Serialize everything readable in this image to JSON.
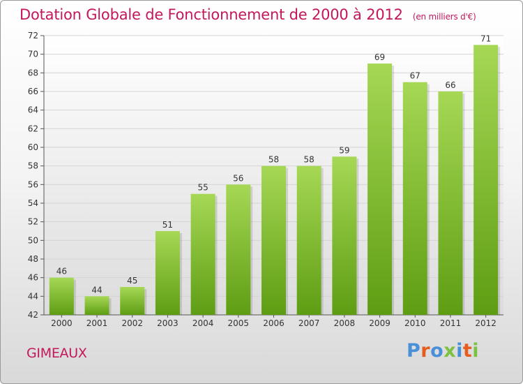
{
  "header": {
    "title": "Dotation Globale de Fonctionnement de 2000 à 2012",
    "unit": "(en milliers d'€)"
  },
  "footer": {
    "commune": "GIMEAUX",
    "logo": "Proxiti"
  },
  "colors": {
    "title": "#c2185b",
    "bar_top": "#a6d855",
    "bar_bottom": "#5e9d13",
    "logo": [
      "#4a90d9",
      "#e65c1e",
      "#4a90d9",
      "#7cc242",
      "#4a90d9",
      "#e65c1e",
      "#7cc242"
    ]
  },
  "chart_data": {
    "type": "bar",
    "title": "Dotation Globale de Fonctionnement de 2000 à 2012",
    "subtitle": "(en milliers d'€)",
    "categories": [
      "2000",
      "2001",
      "2002",
      "2003",
      "2004",
      "2005",
      "2006",
      "2007",
      "2008",
      "2009",
      "2010",
      "2011",
      "2012"
    ],
    "values": [
      46,
      44,
      45,
      51,
      55,
      56,
      58,
      58,
      59,
      69,
      67,
      66,
      71
    ],
    "ylim": [
      42,
      72
    ],
    "yticks": [
      42,
      44,
      46,
      48,
      50,
      52,
      54,
      56,
      58,
      60,
      62,
      64,
      66,
      68,
      70,
      72
    ],
    "grid": true,
    "legend": "none"
  }
}
